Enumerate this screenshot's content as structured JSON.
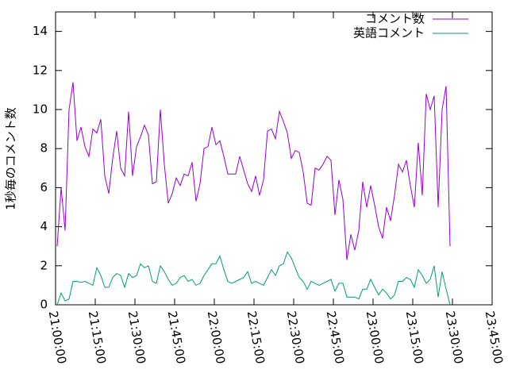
{
  "chart_data": {
    "type": "line",
    "ylabel": "1秒毎のコメント数",
    "x": [
      "21:00:36",
      "21:02:06",
      "21:03:36",
      "21:05:06",
      "21:06:36",
      "21:08:06",
      "21:09:36",
      "21:11:06",
      "21:12:36",
      "21:14:06",
      "21:15:36",
      "21:17:06",
      "21:18:36",
      "21:20:06",
      "21:21:36",
      "21:23:06",
      "21:24:36",
      "21:26:06",
      "21:27:36",
      "21:29:06",
      "21:30:36",
      "21:32:06",
      "21:33:36",
      "21:35:06",
      "21:36:36",
      "21:38:06",
      "21:39:36",
      "21:41:06",
      "21:42:36",
      "21:44:06",
      "21:45:36",
      "21:47:06",
      "21:48:36",
      "21:50:06",
      "21:51:36",
      "21:53:06",
      "21:54:36",
      "21:56:06",
      "21:57:36",
      "21:59:06",
      "22:00:36",
      "22:02:06",
      "22:03:36",
      "22:05:06",
      "22:06:36",
      "22:08:06",
      "22:09:36",
      "22:11:06",
      "22:12:36",
      "22:14:06",
      "22:15:36",
      "22:17:06",
      "22:18:36",
      "22:20:06",
      "22:21:36",
      "22:23:06",
      "22:24:36",
      "22:26:06",
      "22:27:36",
      "22:29:06",
      "22:30:36",
      "22:32:06",
      "22:33:36",
      "22:35:06",
      "22:36:36",
      "22:38:06",
      "22:39:36",
      "22:41:06",
      "22:42:36",
      "22:44:06",
      "22:45:36",
      "22:47:06",
      "22:48:36",
      "22:50:06",
      "22:51:36",
      "22:53:06",
      "22:54:36",
      "22:56:06",
      "22:57:36",
      "22:59:06",
      "23:00:36",
      "23:02:06",
      "23:03:36",
      "23:05:06",
      "23:06:36",
      "23:08:06",
      "23:09:36",
      "23:11:06",
      "23:12:36",
      "23:14:06",
      "23:15:36",
      "23:17:06",
      "23:18:36",
      "23:20:06",
      "23:21:36",
      "23:23:06",
      "23:24:36",
      "23:26:06",
      "23:27:36",
      "23:29:06"
    ],
    "series": [
      {
        "name": "コメント数",
        "color": "#9400d3",
        "values": [
          3.0,
          6.0,
          3.8,
          10.0,
          11.4,
          8.4,
          9.1,
          8.1,
          7.6,
          9.0,
          8.8,
          9.5,
          6.6,
          5.7,
          7.5,
          8.9,
          7.0,
          6.6,
          9.9,
          6.6,
          8.1,
          8.6,
          9.2,
          8.7,
          6.2,
          6.3,
          10.0,
          7.2,
          5.2,
          5.7,
          6.5,
          6.1,
          6.7,
          6.6,
          7.3,
          5.3,
          6.2,
          8.0,
          8.1,
          9.1,
          8.2,
          8.4,
          7.6,
          6.7,
          6.7,
          6.7,
          7.6,
          6.9,
          6.2,
          5.8,
          6.6,
          5.6,
          6.4,
          8.9,
          9.0,
          8.5,
          9.9,
          9.4,
          8.8,
          7.5,
          7.9,
          7.8,
          6.8,
          5.2,
          5.1,
          7.0,
          6.9,
          7.2,
          7.6,
          7.4,
          4.6,
          6.4,
          5.4,
          2.3,
          3.6,
          2.8,
          3.8,
          6.3,
          5.0,
          6.1,
          5.1,
          4.0,
          3.4,
          5.0,
          4.3,
          5.6,
          7.2,
          6.8,
          7.4,
          6.1,
          5.0,
          8.3,
          5.6,
          10.8,
          10.0,
          10.7,
          5.0,
          10.0,
          11.2,
          3.0
        ]
      },
      {
        "name": "英語コメント",
        "color": "#009e73",
        "values": [
          0,
          0.6,
          0.2,
          0.3,
          1.2,
          1.2,
          1.15,
          1.2,
          1.1,
          1.0,
          1.9,
          1.5,
          0.9,
          0.9,
          1.4,
          1.6,
          1.5,
          0.9,
          1.6,
          1.4,
          1.5,
          2.1,
          1.9,
          2.0,
          1.2,
          1.1,
          2.0,
          1.7,
          1.3,
          1.0,
          1.1,
          1.4,
          1.5,
          1.2,
          1.3,
          1.0,
          1.1,
          1.5,
          1.8,
          2.1,
          2.1,
          2.5,
          1.8,
          1.2,
          1.1,
          1.2,
          1.3,
          1.4,
          1.7,
          1.1,
          1.2,
          1.1,
          1.0,
          1.4,
          1.8,
          1.5,
          2.0,
          2.1,
          2.7,
          2.4,
          1.9,
          1.4,
          1.2,
          0.8,
          1.2,
          1.1,
          1.0,
          1.1,
          1.2,
          1.3,
          0.7,
          1.1,
          1.1,
          0.4,
          0.4,
          0.4,
          0.3,
          0.8,
          0.8,
          1.3,
          0.9,
          0.5,
          0.8,
          0.6,
          0.3,
          0.5,
          1.2,
          1.2,
          1.4,
          1.3,
          0.9,
          1.8,
          1.5,
          1.1,
          1.3,
          2.0,
          0.4,
          1.7,
          0.8,
          0
        ]
      }
    ],
    "xlim": [
      "21:00:00",
      "23:45:00"
    ],
    "xticks": [
      "21:00:00",
      "21:15:00",
      "21:30:00",
      "21:45:00",
      "22:00:00",
      "22:15:00",
      "22:30:00",
      "22:45:00",
      "23:00:00",
      "23:15:00",
      "23:30:00",
      "23:45:00"
    ],
    "ylim": [
      0,
      15
    ],
    "yticks": [
      0,
      2,
      4,
      6,
      8,
      10,
      12,
      14
    ],
    "grid": false,
    "legend": "top-right"
  }
}
